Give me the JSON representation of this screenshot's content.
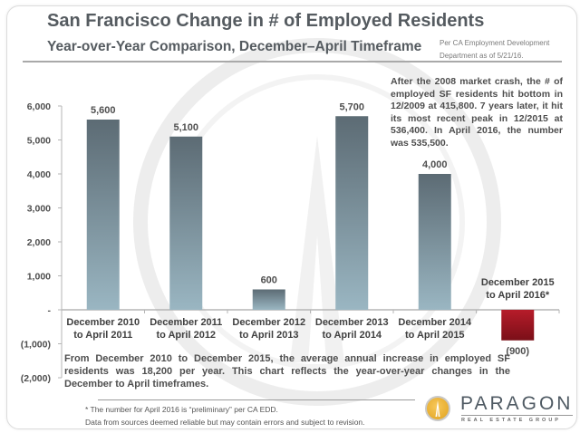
{
  "header": {
    "title": "San Francisco Change in # of Employed  Residents",
    "subtitle": "Year-over-Year Comparison, December–April Timeframe",
    "source_line1": "Per CA Employment Development",
    "source_line2": "Department as of 5/21/16."
  },
  "annotation": "After the 2008 market crash, the # of employed SF residents hit bottom in 12/2009 at 415,800. 7 years later, it hit its most recent peak in 12/2015 at 536,400. In April 2016, the number was 535,500.",
  "summary": {
    "line1": "From December 2010 to December 2015, the average annual increase in employed SF",
    "line2": "residents was 18,200 per year. This chart reflects the year-over-year changes in the",
    "line3": "December to April timeframes."
  },
  "footer": {
    "note1": "* The number for April 2016 is “preliminary” per CA EDD.",
    "note2": "Data from sources deemed reliable but may contain errors and subject to revision."
  },
  "logo": {
    "name": "PARAGON",
    "tagline": "REAL ESTATE GROUP",
    "icon": "tower-icon",
    "accent": "#e3a82a"
  },
  "chart_data": {
    "type": "bar",
    "title": "San Francisco Change in # of Employed Residents",
    "subtitle": "Year-over-Year Comparison, December–April Timeframe",
    "xlabel": "",
    "ylabel": "",
    "ylim": [
      -2000,
      6000
    ],
    "yticks": [
      6000,
      5000,
      4000,
      3000,
      2000,
      1000,
      0,
      -1000,
      -2000
    ],
    "ytick_labels": [
      "6,000",
      "5,000",
      "4,000",
      "3,000",
      "2,000",
      "1,000",
      "-",
      "(1,000)",
      "(2,000)"
    ],
    "grid": false,
    "categories": [
      [
        "December 2010",
        "to April 2011"
      ],
      [
        "December 2011",
        "to April 2012"
      ],
      [
        "December 2012",
        "to April 2013"
      ],
      [
        "December 2013",
        "to April 2014"
      ],
      [
        "December 2014",
        "to April 2015"
      ],
      [
        "December 2015",
        "to April 2016*"
      ]
    ],
    "values": [
      5600,
      5100,
      600,
      5700,
      4000,
      -900
    ],
    "data_labels": [
      "5,600",
      "5,100",
      "600",
      "5,700",
      "4,000",
      "(900)"
    ],
    "colors": {
      "positive_top": "#5c6b74",
      "positive_bottom": "#9ab6c2",
      "negative_top": "#b71c2a",
      "negative_bottom": "#7a0f18",
      "axis": "#b5b5b5",
      "text": "#4e4e4e"
    }
  }
}
